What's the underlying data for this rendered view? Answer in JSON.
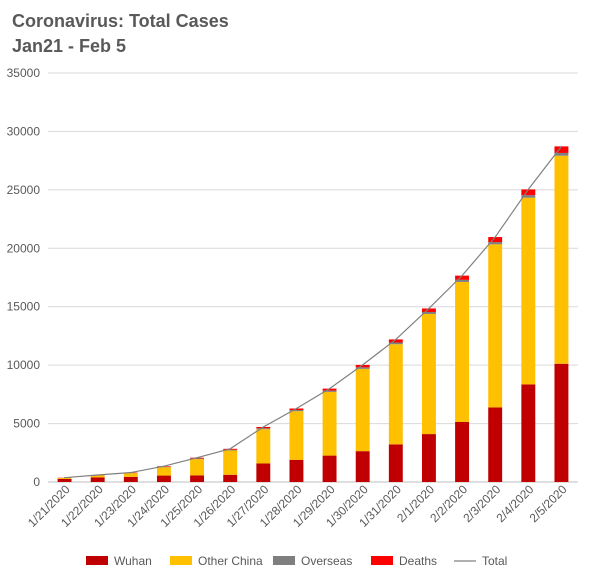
{
  "chart_data": {
    "type": "bar",
    "stacked": true,
    "title": "Coronavirus: Total Cases",
    "subtitle": "Jan21 - Feb 5",
    "xlabel": "",
    "ylabel": "",
    "ylim": [
      0,
      35000
    ],
    "yticks": [
      0,
      5000,
      10000,
      15000,
      20000,
      25000,
      30000,
      35000
    ],
    "grid": true,
    "legend_position": "bottom",
    "categories": [
      "1/21/2020",
      "1/22/2020",
      "1/23/2020",
      "1/24/2020",
      "1/25/2020",
      "1/26/2020",
      "1/27/2020",
      "1/28/2020",
      "1/29/2020",
      "1/30/2020",
      "1/31/2020",
      "2/1/2020",
      "2/2/2020",
      "2/3/2020",
      "2/4/2020",
      "2/5/2020"
    ],
    "series": [
      {
        "name": "Wuhan",
        "color": "#C00000",
        "values": [
          260,
          400,
          440,
          550,
          570,
          620,
          1590,
          1900,
          2260,
          2640,
          3220,
          4100,
          5140,
          6380,
          8350,
          10120
        ]
      },
      {
        "name": "Other China",
        "color": "#FFC000",
        "values": [
          80,
          170,
          320,
          710,
          1390,
          2080,
          2930,
          4160,
          5450,
          7040,
          8570,
          10280,
          11980,
          13960,
          15980,
          17800
        ]
      },
      {
        "name": "Overseas",
        "color": "#7F7F7F",
        "values": [
          10,
          10,
          20,
          40,
          60,
          60,
          80,
          100,
          110,
          130,
          150,
          170,
          180,
          190,
          220,
          240
        ]
      },
      {
        "name": "Deaths",
        "color": "#FF0000",
        "values": [
          20,
          20,
          30,
          50,
          60,
          80,
          110,
          130,
          170,
          210,
          260,
          300,
          360,
          430,
          490,
          560
        ]
      }
    ],
    "line_series": {
      "name": "Total",
      "color": "#808080",
      "values": [
        370,
        600,
        810,
        1350,
        2080,
        2840,
        4710,
        6290,
        7990,
        10020,
        12200,
        14850,
        17660,
        20960,
        25040,
        28720
      ]
    }
  }
}
